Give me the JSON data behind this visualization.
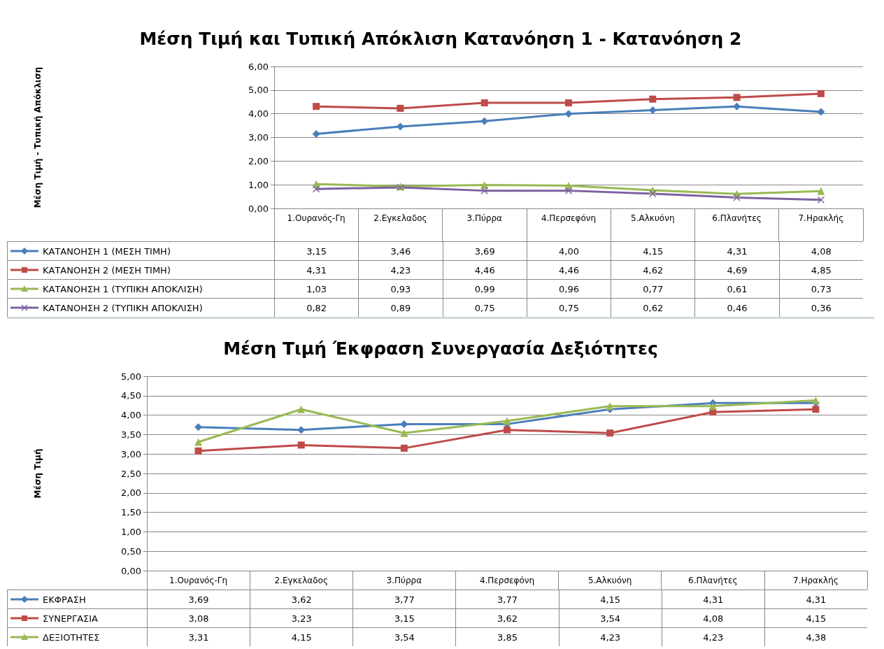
{
  "chart_data": [
    {
      "type": "line",
      "title": "Μέση Τιμή και Τυπική Απόκλιση Κατανόηση 1 - Κατανόηση 2",
      "ylabel": "Μέση Τιμή - Τυπική Απόκλιση",
      "categories": [
        "1.Ουρανός-Γη",
        "2.Εγκελαδος",
        "3.Πύρρα",
        "4.Περσεφόνη",
        "5.Αλκυόνη",
        "6.Πλανήτες",
        "7.Ηρακλής"
      ],
      "series": [
        {
          "name": "ΚΑΤΑΝΟΗΣΗ 1 (ΜΕΣΗ ΤΙΜΗ)",
          "color": "#4a7ebb",
          "marker": "diamond",
          "values": [
            3.15,
            3.46,
            3.69,
            4.0,
            4.15,
            4.31,
            4.08
          ],
          "value_labels": [
            "3,15",
            "3,46",
            "3,69",
            "4,00",
            "4,15",
            "4,31",
            "4,08"
          ]
        },
        {
          "name": "ΚΑΤΑΝΟΗΣΗ 2 (ΜΕΣΗ ΤΙΜΗ)",
          "color": "#be4b48",
          "marker": "square",
          "values": [
            4.31,
            4.23,
            4.46,
            4.46,
            4.62,
            4.69,
            4.85
          ],
          "value_labels": [
            "4,31",
            "4,23",
            "4,46",
            "4,46",
            "4,62",
            "4,69",
            "4,85"
          ]
        },
        {
          "name": "ΚΑΤΑΝΟΗΣΗ 1 (ΤΥΠΙΚΗ ΑΠΟΚΛΙΣΗ)",
          "color": "#98b954",
          "marker": "triangle",
          "values": [
            1.03,
            0.93,
            0.99,
            0.96,
            0.77,
            0.61,
            0.73
          ],
          "value_labels": [
            "1,03",
            "0,93",
            "0,99",
            "0,96",
            "0,77",
            "0,61",
            "0,73"
          ]
        },
        {
          "name": "ΚΑΤΑΝΟΗΣΗ 2 (ΤΥΠΙΚΗ ΑΠΟΚΛΙΣΗ)",
          "color": "#7d60a0",
          "marker": "cross",
          "values": [
            0.82,
            0.89,
            0.75,
            0.75,
            0.62,
            0.46,
            0.36
          ],
          "value_labels": [
            "0,82",
            "0,89",
            "0,75",
            "0,75",
            "0,62",
            "0,46",
            "0,36"
          ]
        }
      ],
      "ylim": [
        0,
        6
      ],
      "yticks": [
        {
          "value": 0,
          "label": "0,00"
        },
        {
          "value": 1,
          "label": "1,00"
        },
        {
          "value": 2,
          "label": "2,00"
        },
        {
          "value": 3,
          "label": "3,00"
        },
        {
          "value": 4,
          "label": "4,00"
        },
        {
          "value": 5,
          "label": "5,00"
        },
        {
          "value": 6,
          "label": "6,00"
        }
      ],
      "grid": "y",
      "legend": "bottom left"
    },
    {
      "type": "line",
      "title": "Μέση Τιμή Έκφραση Συνεργασία Δεξιότητες",
      "ylabel": "Μέση Τιμή",
      "categories": [
        "1.Ουρανός-Γη",
        "2.Εγκελαδος",
        "3.Πύρρα",
        "4.Περσεφόνη",
        "5.Αλκυόνη",
        "6.Πλανήτες",
        "7.Ηρακλής"
      ],
      "series": [
        {
          "name": "ΕΚΦΡΑΣΗ",
          "color": "#4a7ebb",
          "marker": "diamond",
          "values": [
            3.69,
            3.62,
            3.77,
            3.77,
            4.15,
            4.31,
            4.31
          ],
          "value_labels": [
            "3,69",
            "3,62",
            "3,77",
            "3,77",
            "4,15",
            "4,31",
            "4,31"
          ]
        },
        {
          "name": "ΣΥΝΕΡΓΑΣΙΑ",
          "color": "#be4b48",
          "marker": "square",
          "values": [
            3.08,
            3.23,
            3.15,
            3.62,
            3.54,
            4.08,
            4.15
          ],
          "value_labels": [
            "3,08",
            "3,23",
            "3,15",
            "3,62",
            "3,54",
            "4,08",
            "4,15"
          ]
        },
        {
          "name": "ΔΕΞΙΟΤΗΤΕΣ",
          "color": "#98b954",
          "marker": "triangle",
          "values": [
            3.31,
            4.15,
            3.54,
            3.85,
            4.23,
            4.23,
            4.38
          ],
          "value_labels": [
            "3,31",
            "4,15",
            "3,54",
            "3,85",
            "4,23",
            "4,23",
            "4,38"
          ]
        }
      ],
      "ylim": [
        0,
        5
      ],
      "yticks": [
        {
          "value": 0,
          "label": "0,00"
        },
        {
          "value": 0.5,
          "label": "0,50"
        },
        {
          "value": 1,
          "label": "1,00"
        },
        {
          "value": 1.5,
          "label": "1,50"
        },
        {
          "value": 2,
          "label": "2,00"
        },
        {
          "value": 2.5,
          "label": "2,50"
        },
        {
          "value": 3,
          "label": "3,00"
        },
        {
          "value": 3.5,
          "label": "3,50"
        },
        {
          "value": 4,
          "label": "4,00"
        },
        {
          "value": 4.5,
          "label": "4,50"
        },
        {
          "value": 5,
          "label": "5,00"
        }
      ],
      "grid": "y",
      "legend": "bottom left"
    }
  ]
}
